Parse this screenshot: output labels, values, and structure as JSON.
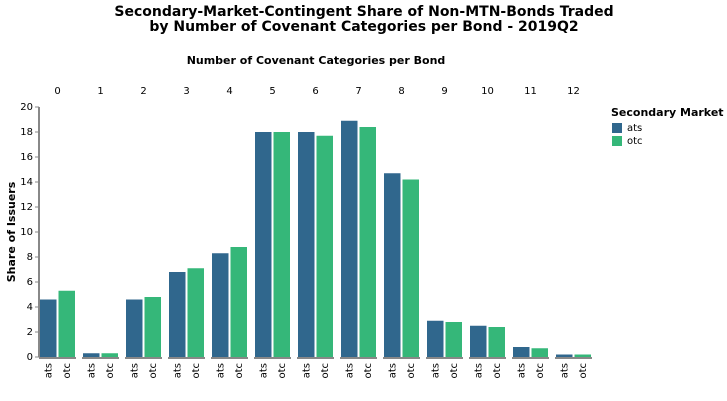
{
  "chart_data": {
    "type": "bar",
    "title": [
      "Secondary-Market-Contingent Share of Non-MTN-Bonds Traded",
      "by Number of Covenant Categories per Bond - 2019Q2"
    ],
    "column_title": "Number of Covenant Categories per Bond",
    "y_label": "Share of Issuers",
    "legend_title": "Secondary Market",
    "categories": [
      "0",
      "1",
      "2",
      "3",
      "4",
      "5",
      "6",
      "7",
      "8",
      "9",
      "10",
      "11",
      "12"
    ],
    "series": [
      {
        "name": "ats",
        "color": "#30678d",
        "values": [
          4.6,
          0.3,
          4.6,
          6.8,
          8.3,
          18.0,
          18.0,
          18.9,
          14.7,
          2.9,
          2.5,
          0.8,
          0.2
        ]
      },
      {
        "name": "otc",
        "color": "#35b779",
        "values": [
          5.3,
          0.3,
          4.8,
          7.1,
          8.8,
          18.0,
          17.7,
          18.4,
          14.2,
          2.8,
          2.4,
          0.7,
          0.2
        ]
      }
    ],
    "ylim": [
      0,
      20
    ],
    "yticks": [
      0,
      2,
      4,
      6,
      8,
      10,
      12,
      14,
      16,
      18,
      20
    ]
  }
}
